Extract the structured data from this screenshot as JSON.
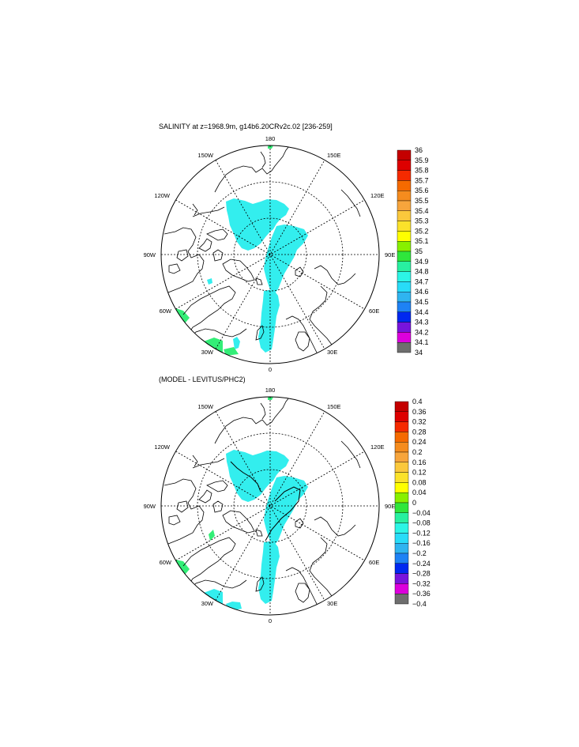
{
  "panels": [
    {
      "title": "SALINITY at z=1968.9m, g14b6.20CRv2c.02 [236-259]",
      "colorbar_labels": [
        "36",
        "35.9",
        "35.8",
        "35.7",
        "35.6",
        "35.5",
        "35.4",
        "35.3",
        "35.2",
        "35.1",
        "35",
        "34.9",
        "34.8",
        "34.7",
        "34.6",
        "34.5",
        "34.4",
        "34.3",
        "34.2",
        "34.1",
        "34"
      ]
    },
    {
      "title": "(MODEL - LEVITUS/PHC2)",
      "colorbar_labels": [
        "0.4",
        "0.36",
        "0.32",
        "0.28",
        "0.24",
        "0.2",
        "0.16",
        "0.12",
        "0.08",
        "0.04",
        "0",
        "−0.04",
        "−0.08",
        "−0.12",
        "−0.16",
        "−0.2",
        "−0.24",
        "−0.28",
        "−0.32",
        "−0.36",
        "−0.4"
      ]
    }
  ],
  "longitude_labels": [
    "180",
    "150E",
    "120E",
    "90E",
    "60E",
    "30E",
    "0",
    "30W",
    "60W",
    "90W",
    "120W",
    "150W"
  ],
  "colorbar_colors": [
    "#c40000",
    "#dd0000",
    "#f52a00",
    "#f56a00",
    "#f58c1e",
    "#f7a53c",
    "#fbc83c",
    "#fbe22a",
    "#ffff00",
    "#88f000",
    "#2fe63c",
    "#28f0a0",
    "#2cf5e6",
    "#28dcf8",
    "#2fb4f0",
    "#1e82f5",
    "#0028f0",
    "#7814dc",
    "#dc00dc",
    "#d4d4d4",
    "#6e6e6e"
  ],
  "map_colors": {
    "fill": "#33eeee",
    "fill_green": "#33ee77"
  }
}
